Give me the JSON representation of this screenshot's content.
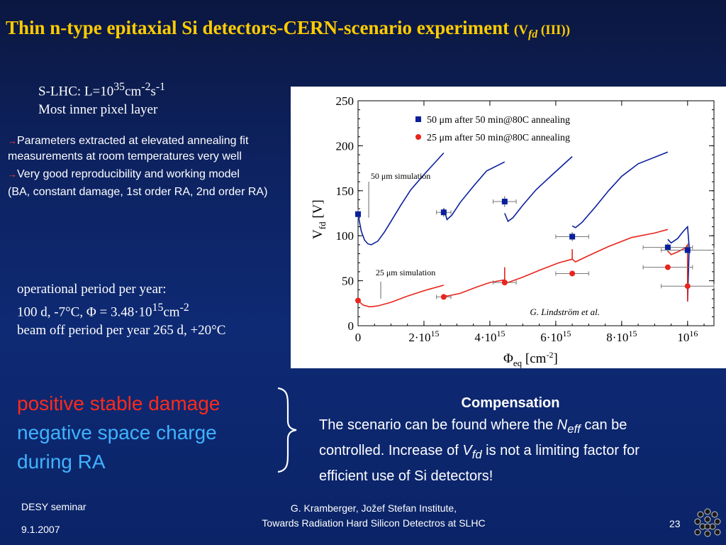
{
  "title": {
    "main": "Thin n-type epitaxial Si detectors-CERN-scenario experiment",
    "sub_open": "(V",
    "sub_subscript": "fd",
    "sub_close": " (III))"
  },
  "slhc": {
    "line1_prefix": "S-LHC: L=10",
    "line1_exp1": "35",
    "line1_unit": "cm",
    "line1_exp2": "-2",
    "line1_s": "s",
    "line1_exp3": "-1",
    "line2": "Most inner pixel layer"
  },
  "bullets": {
    "arrow": "→",
    "item1": "Parameters extracted at elevated annealing fit measurements at room temperatures very well",
    "item2": "Very good reproducibility and working model",
    "item3": "(BA, constant damage, 1st order RA, 2nd order RA)"
  },
  "operational": {
    "line1": "operational period per year:",
    "line2_prefix": "100 d, -7°C, Φ = 3.48·10",
    "line2_exp": "15",
    "line2_unit": "cm",
    "line2_exp2": "-2",
    "line3": "beam off period per year 265 d, +20°C"
  },
  "damage": {
    "line1": "positive stable damage",
    "line2": "negative space charge",
    "line3": "during RA"
  },
  "compensation": {
    "heading": "Compensation",
    "t1": "The scenario can be found where the ",
    "t2_italic": "N",
    "t2_sub": "eff",
    "t3": " can be controlled. Increase of ",
    "t4_italic": "V",
    "t4_sub": "fd",
    "t5": " is not a limiting factor for efficient use of Si detectors!"
  },
  "footer": {
    "seminar": "DESY seminar",
    "date": "9.1.2007",
    "author": "G. Kramberger, Jožef Stefan Institute,",
    "talk": "Towards Radiation Hard Silicon Detectros at SLHC",
    "page": "23"
  },
  "colors": {
    "title": "#ffcc00",
    "series_50": "#0a1f9e",
    "series_25": "#e8241c",
    "highlight_red": "#ff2a1a",
    "highlight_cyan": "#3fb3ff"
  },
  "chart_data": {
    "type": "line",
    "xlabel": "Φ",
    "xlabel_sub": "eq",
    "xlabel_unit": " [cm",
    "xlabel_unit_exp": "-2",
    "xlabel_close": "]",
    "ylabel": "V",
    "ylabel_sub": "fd",
    "ylabel_unit": " [V]",
    "xlim": [
      0,
      1.08e+16
    ],
    "ylim": [
      0,
      250
    ],
    "y_ticks": [
      "0",
      "50",
      "100",
      "150",
      "200",
      "250"
    ],
    "x_ticks": [
      {
        "value": 0,
        "mant": "0",
        "exp": ""
      },
      {
        "value": 2000000000000000.0,
        "mant": "2·10",
        "exp": "15"
      },
      {
        "value": 4000000000000000.0,
        "mant": "4·10",
        "exp": "15"
      },
      {
        "value": 6000000000000000.0,
        "mant": "6·10",
        "exp": "15"
      },
      {
        "value": 8000000000000000.0,
        "mant": "8·10",
        "exp": "15"
      },
      {
        "value": 1e+16,
        "mant": "10",
        "exp": "16"
      }
    ],
    "credit": "G. Lindström et al.",
    "legend_position": "top-right",
    "legend": [
      {
        "label": "50 μm after 50 min@80C annealing",
        "marker": "square"
      },
      {
        "label": "25 μm after 50 min@80C annealing",
        "marker": "circle"
      }
    ],
    "sim_labels": [
      {
        "text": "50 μm simulation",
        "x": 1400000000000000.0,
        "y": 160
      },
      {
        "text": "25 μm simulation",
        "x": 1550000000000000.0,
        "y": 53
      }
    ],
    "simulation_50": {
      "name": "50 μm simulation",
      "segments": [
        [
          [
            0,
            124
          ],
          [
            100000000000000.0,
            105
          ],
          [
            200000000000000.0,
            95
          ],
          [
            300000000000000.0,
            91
          ],
          [
            400000000000000.0,
            90
          ],
          [
            600000000000000.0,
            94
          ],
          [
            800000000000000.0,
            104
          ],
          [
            1000000000000000.0,
            116
          ],
          [
            1300000000000000.0,
            134
          ],
          [
            1600000000000000.0,
            151
          ],
          [
            2000000000000000.0,
            168
          ],
          [
            2600000000000000.0,
            192
          ]
        ],
        [
          [
            2600000000000000.0,
            130
          ],
          [
            2700000000000000.0,
            118
          ],
          [
            2850000000000000.0,
            123
          ],
          [
            3100000000000000.0,
            137
          ],
          [
            3500000000000000.0,
            155
          ],
          [
            3900000000000000.0,
            172
          ],
          [
            4450000000000000.0,
            182
          ]
        ],
        [
          [
            4450000000000000.0,
            125
          ],
          [
            4550000000000000.0,
            116
          ],
          [
            4700000000000000.0,
            120
          ],
          [
            5000000000000000.0,
            134
          ],
          [
            5400000000000000.0,
            151
          ],
          [
            5900000000000000.0,
            168
          ],
          [
            6500000000000000.0,
            188
          ]
        ],
        [
          [
            6500000000000000.0,
            111
          ],
          [
            6600000000000000.0,
            109
          ],
          [
            6800000000000000.0,
            115
          ],
          [
            7200000000000000.0,
            132
          ],
          [
            7600000000000000.0,
            150
          ],
          [
            8000000000000000.0,
            166
          ],
          [
            8500000000000000.0,
            180
          ],
          [
            9400000000000000.0,
            193
          ]
        ],
        [
          [
            9400000000000000.0,
            96
          ],
          [
            9500000000000000.0,
            92
          ],
          [
            9700000000000000.0,
            97
          ],
          [
            9850000000000000.0,
            104
          ],
          [
            1e+16,
            110
          ],
          [
            1.005e+16,
            87
          ],
          [
            1e+16,
            27
          ]
        ]
      ]
    },
    "simulation_25": {
      "name": "25 μm simulation",
      "segments": [
        [
          [
            0,
            28
          ],
          [
            150000000000000.0,
            23
          ],
          [
            350000000000000.0,
            21
          ],
          [
            600000000000000.0,
            22
          ],
          [
            1000000000000000.0,
            26
          ],
          [
            1500000000000000.0,
            33
          ],
          [
            2100000000000000.0,
            40
          ],
          [
            2600000000000000.0,
            45
          ]
        ],
        [
          [
            2600000000000000.0,
            34
          ],
          [
            2700000000000000.0,
            33
          ],
          [
            3100000000000000.0,
            36
          ],
          [
            3600000000000000.0,
            43
          ],
          [
            4000000000000000.0,
            48
          ],
          [
            4450000000000000.0,
            51
          ],
          [
            4450000000000000.0,
            65
          ]
        ],
        [
          [
            4450000000000000.0,
            50
          ],
          [
            4550000000000000.0,
            48
          ],
          [
            5000000000000000.0,
            54
          ],
          [
            5600000000000000.0,
            63
          ],
          [
            6100000000000000.0,
            70
          ],
          [
            6500000000000000.0,
            74
          ],
          [
            6500000000000000.0,
            85
          ]
        ],
        [
          [
            6500000000000000.0,
            74
          ],
          [
            6600000000000000.0,
            71
          ],
          [
            7000000000000000.0,
            78
          ],
          [
            7600000000000000.0,
            88
          ],
          [
            8300000000000000.0,
            98
          ],
          [
            9000000000000000.0,
            103
          ],
          [
            9400000000000000.0,
            107
          ]
        ],
        [
          [
            9400000000000000.0,
            83
          ],
          [
            9500000000000000.0,
            79
          ],
          [
            9700000000000000.0,
            82
          ],
          [
            9950000000000000.0,
            87
          ],
          [
            1e+16,
            90
          ],
          [
            1e+16,
            27
          ]
        ]
      ]
    },
    "measured_50": {
      "name": "50 μm after 50 min@80C annealing",
      "points": [
        {
          "x": 0,
          "y": 124,
          "xerr": 0,
          "yerr": 6
        },
        {
          "x": 2600000000000000.0,
          "y": 126,
          "xerr": 220000000000000.0,
          "yerr": 5
        },
        {
          "x": 4450000000000000.0,
          "y": 138,
          "xerr": 350000000000000.0,
          "yerr": 6
        },
        {
          "x": 6500000000000000.0,
          "y": 99,
          "xerr": 500000000000000.0,
          "yerr": 5
        },
        {
          "x": 9400000000000000.0,
          "y": 87,
          "xerr": 750000000000000.0,
          "yerr": 5
        },
        {
          "x": 1e+16,
          "y": 84,
          "xerr": 800000000000000.0,
          "yerr": 5
        }
      ]
    },
    "measured_25": {
      "name": "25 μm after 50 min@80C annealing",
      "points": [
        {
          "x": 0,
          "y": 28,
          "xerr": 0,
          "yerr": 2
        },
        {
          "x": 2600000000000000.0,
          "y": 32,
          "xerr": 220000000000000.0,
          "yerr": 2
        },
        {
          "x": 4450000000000000.0,
          "y": 48,
          "xerr": 350000000000000.0,
          "yerr": 2
        },
        {
          "x": 6500000000000000.0,
          "y": 58,
          "xerr": 500000000000000.0,
          "yerr": 2
        },
        {
          "x": 9400000000000000.0,
          "y": 65,
          "xerr": 750000000000000.0,
          "yerr": 2
        },
        {
          "x": 1e+16,
          "y": 44,
          "xerr": 800000000000000.0,
          "yerr": 2
        }
      ]
    }
  }
}
